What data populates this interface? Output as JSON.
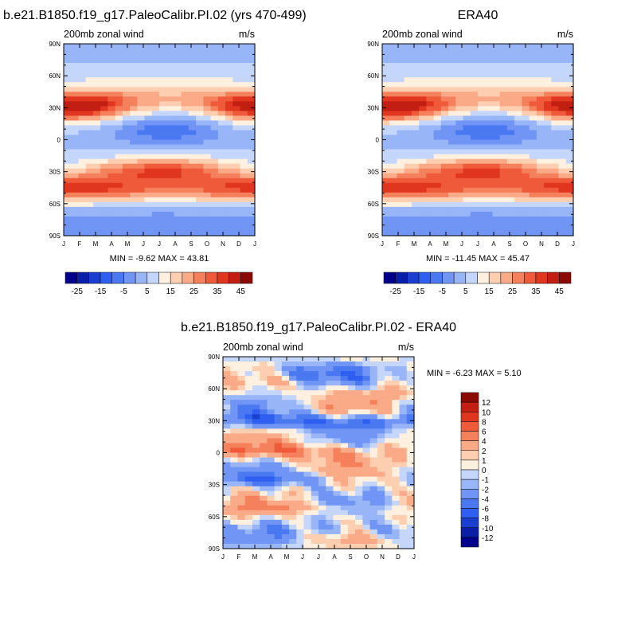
{
  "chart_data": [
    {
      "type": "heatmap",
      "title": "b.e21.B1850.f19_g17.PaleoCalibr.PI.02 (yrs 470-499)",
      "left_string": "200mb zonal wind",
      "right_string": "m/s",
      "x_ticks": [
        "J",
        "F",
        "M",
        "A",
        "M",
        "J",
        "J",
        "A",
        "S",
        "O",
        "N",
        "D",
        "J"
      ],
      "y_ticks": [
        "90N",
        "60N",
        "30N",
        "0",
        "30S",
        "60S",
        "90S"
      ],
      "stats": "MIN =  -9.62 MAX =  43.81",
      "levels": [
        -30,
        -25,
        -20,
        -15,
        -10,
        -5,
        0,
        5,
        10,
        15,
        20,
        25,
        30,
        35,
        40,
        45
      ],
      "colorbar_labels": [
        "-25",
        "-15",
        "-5",
        "5",
        "15",
        "25",
        "35",
        "45"
      ],
      "colors": [
        "#00008c",
        "#0a1fa8",
        "#1a3fd0",
        "#2f5ff0",
        "#4a78f0",
        "#7095f5",
        "#98b5f8",
        "#c4d6fb",
        "#fff0e0",
        "#fdcfb0",
        "#fbaa88",
        "#f5805c",
        "#ee5a3a",
        "#e0361f",
        "#c21e12",
        "#8c0a05"
      ],
      "colorbar_orientation": "horizontal"
    },
    {
      "type": "heatmap",
      "title": "ERA40",
      "left_string": "200mb zonal wind",
      "right_string": "m/s",
      "x_ticks": [
        "J",
        "F",
        "M",
        "A",
        "M",
        "J",
        "J",
        "A",
        "S",
        "O",
        "N",
        "D",
        "J"
      ],
      "y_ticks": [
        "90N",
        "60N",
        "30N",
        "0",
        "30S",
        "60S",
        "90S"
      ],
      "stats": "MIN = -11.45 MAX =  45.47",
      "levels": [
        -30,
        -25,
        -20,
        -15,
        -10,
        -5,
        0,
        5,
        10,
        15,
        20,
        25,
        30,
        35,
        40,
        45
      ],
      "colorbar_labels": [
        "-25",
        "-15",
        "-5",
        "5",
        "15",
        "25",
        "35",
        "45"
      ],
      "colors": [
        "#00008c",
        "#0a1fa8",
        "#1a3fd0",
        "#2f5ff0",
        "#4a78f0",
        "#7095f5",
        "#98b5f8",
        "#c4d6fb",
        "#fff0e0",
        "#fdcfb0",
        "#fbaa88",
        "#f5805c",
        "#ee5a3a",
        "#e0361f",
        "#c21e12",
        "#8c0a05"
      ],
      "colorbar_orientation": "horizontal"
    },
    {
      "type": "heatmap",
      "title": "b.e21.B1850.f19_g17.PaleoCalibr.PI.02 - ERA40",
      "left_string": "200mb zonal wind",
      "right_string": "m/s",
      "x_ticks": [
        "J",
        "F",
        "M",
        "A",
        "M",
        "J",
        "J",
        "A",
        "S",
        "O",
        "N",
        "D",
        "J"
      ],
      "y_ticks": [
        "90N",
        "60N",
        "30N",
        "0",
        "30S",
        "60S",
        "90S"
      ],
      "stats": "MIN =  -6.23 MAX =   5.10",
      "levels": [
        -14,
        -12,
        -10,
        -8,
        -6,
        -4,
        -2,
        -1,
        0,
        1,
        2,
        4,
        6,
        8,
        10,
        12,
        14
      ],
      "colorbar_labels": [
        "12",
        "10",
        "8",
        "6",
        "4",
        "2",
        "1",
        "0",
        "-1",
        "-2",
        "-4",
        "-6",
        "-8",
        "-10",
        "-12"
      ],
      "colors": [
        "#00008c",
        "#0a1fa8",
        "#1a3fd0",
        "#2f5ff0",
        "#4a78f0",
        "#7095f5",
        "#98b5f8",
        "#c4d6fb",
        "#fff0e0",
        "#fdcfb0",
        "#fbaa88",
        "#f5805c",
        "#ee5a3a",
        "#e0361f",
        "#c21e12",
        "#8c0a05"
      ],
      "colorbar_orientation": "vertical"
    }
  ]
}
